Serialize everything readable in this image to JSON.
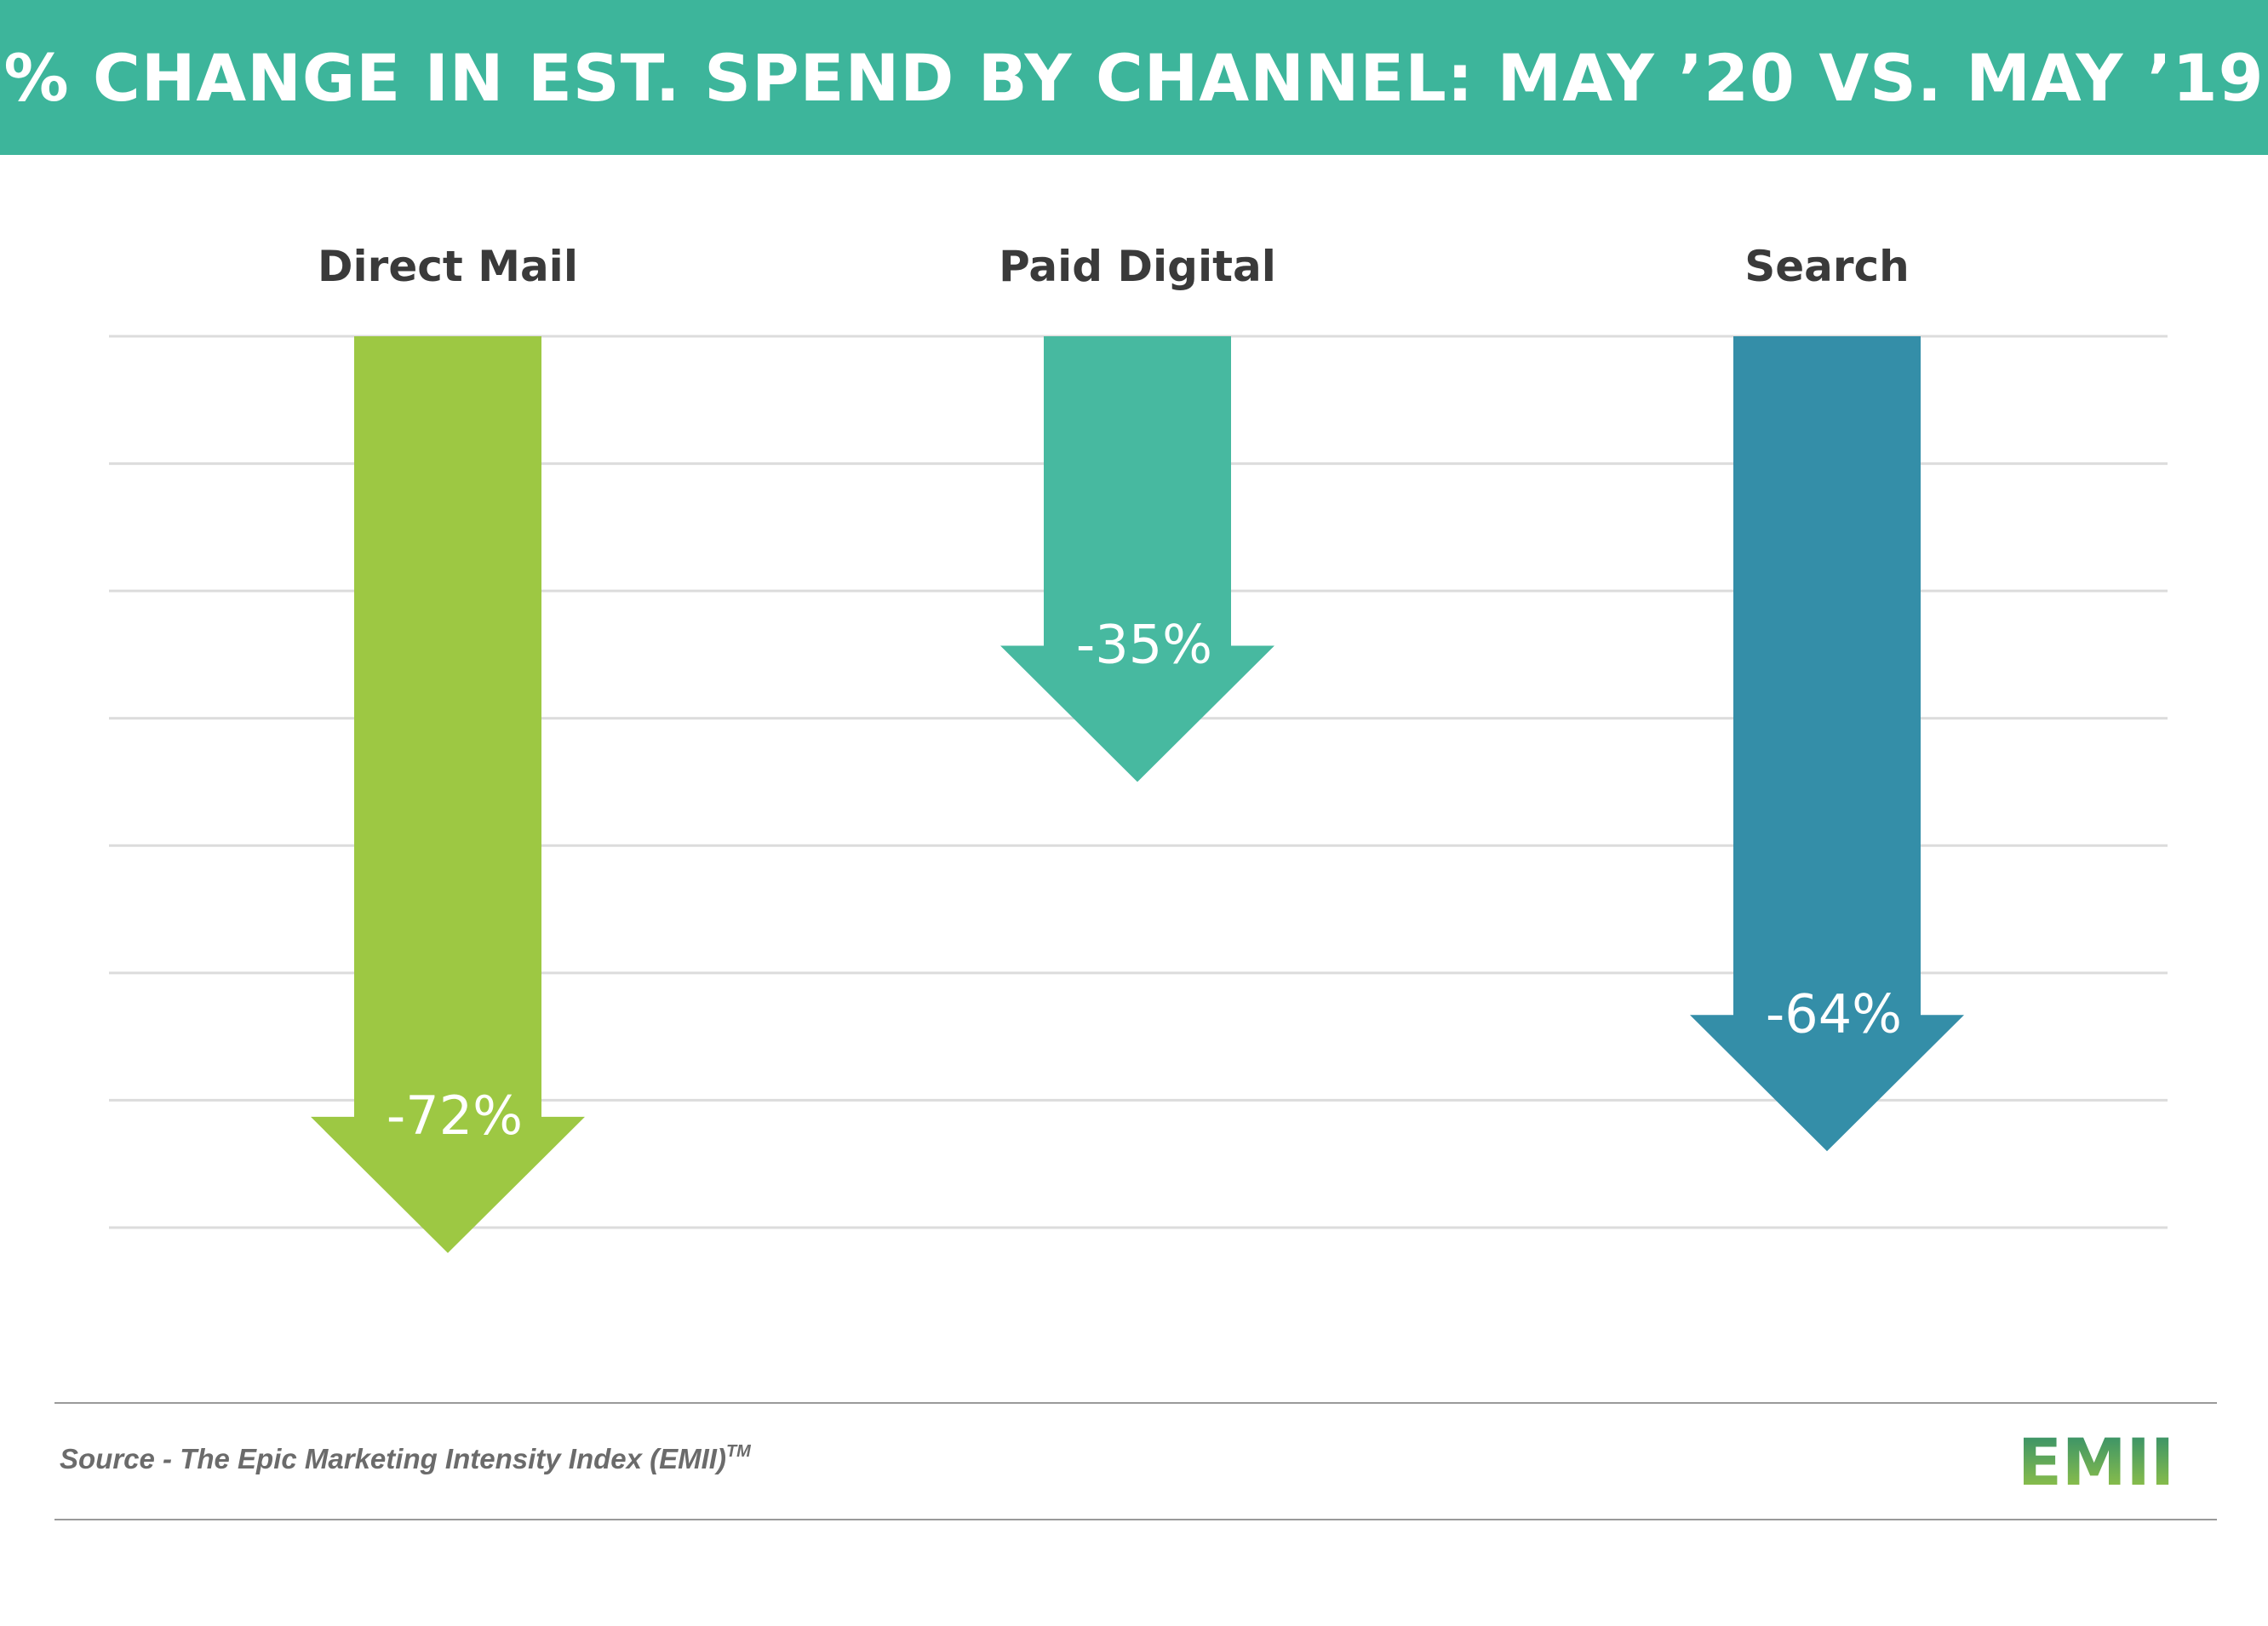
{
  "header": {
    "title": "% CHANGE IN EST. SPEND BY CHANNEL: MAY ’20 VS. MAY ’19"
  },
  "chart_data": {
    "type": "bar",
    "orientation": "downward-arrows",
    "title": "% CHANGE IN EST. SPEND BY CHANNEL: MAY ’20 VS. MAY ’19",
    "categories": [
      "Direct Mail",
      "Paid Digital",
      "Search"
    ],
    "values": [
      -72,
      -35,
      -64
    ],
    "value_labels": [
      "-72%",
      "-35%",
      "-64%"
    ],
    "colors": [
      "#9dc843",
      "#47b9a0",
      "#348ea8"
    ],
    "ylim": [
      -70,
      0
    ],
    "grid": true,
    "xlabel": "",
    "ylabel": ""
  },
  "footer": {
    "source_text": "Source - The Epic Marketing Intensity Index (EMII)",
    "trademark": "TM"
  },
  "logo": {
    "text": "EMII",
    "color_dark": "#2a8a6e",
    "color_light": "#9dc843"
  }
}
